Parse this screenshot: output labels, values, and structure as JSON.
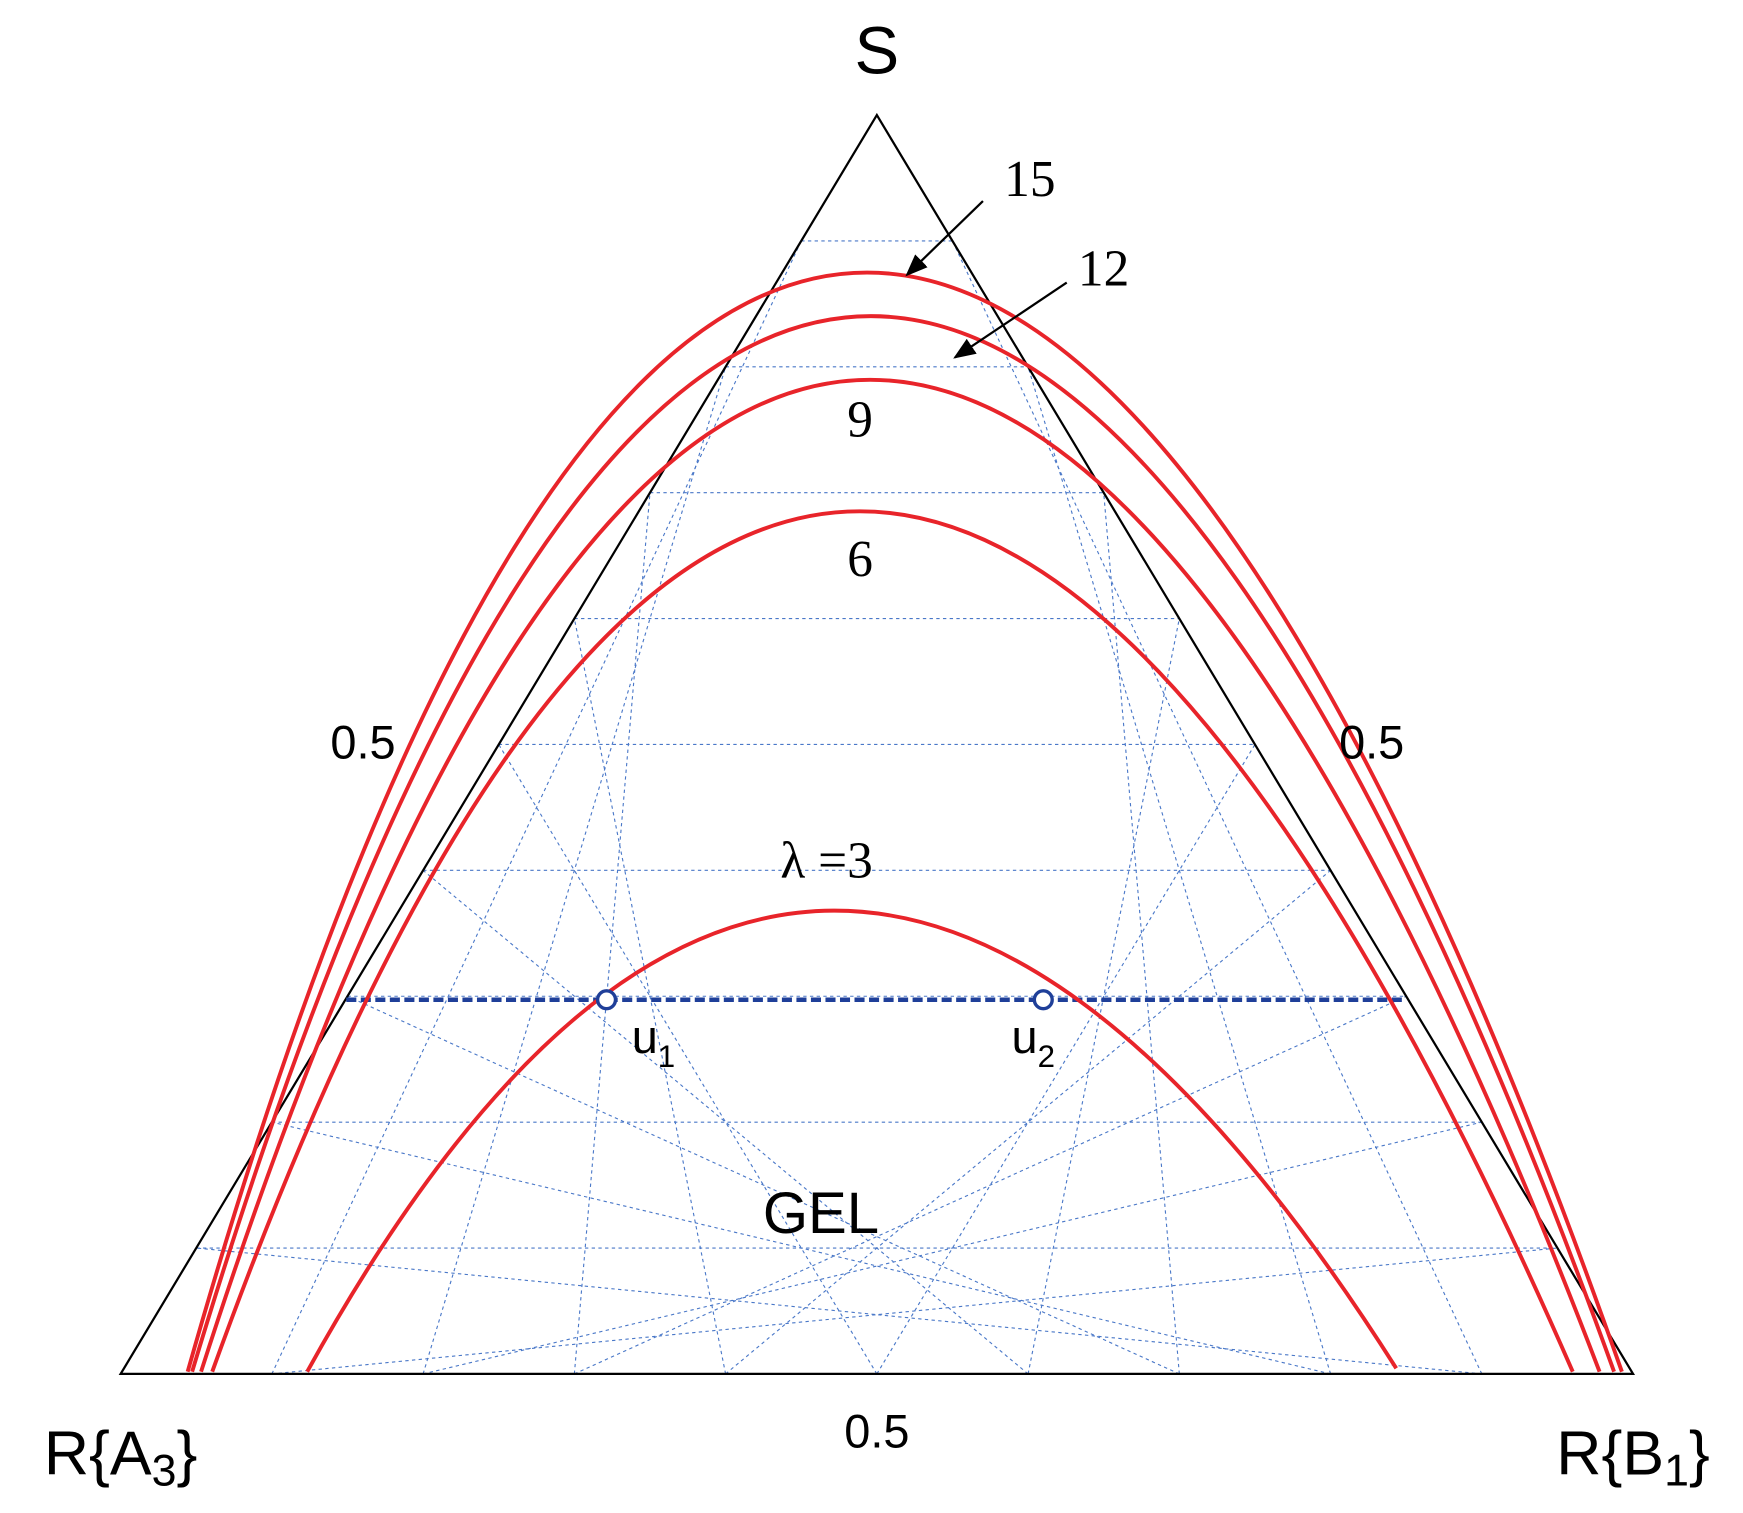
{
  "corners": {
    "top": "S",
    "left": {
      "main": "R{A",
      "sub": "3",
      "close": "}"
    },
    "right": {
      "main": "R{B",
      "sub": "1",
      "close": "}"
    }
  },
  "side_labels": {
    "left": "0.5",
    "right": "0.5",
    "bottom": "0.5"
  },
  "curve_labels": {
    "l15": "15",
    "l12": "12",
    "l9": "9",
    "l6": "6",
    "l3": "λ =3"
  },
  "points": {
    "u1": {
      "main": "u",
      "sub": "1"
    },
    "u2": {
      "main": "u",
      "sub": "2"
    }
  },
  "region": "GEL"
}
